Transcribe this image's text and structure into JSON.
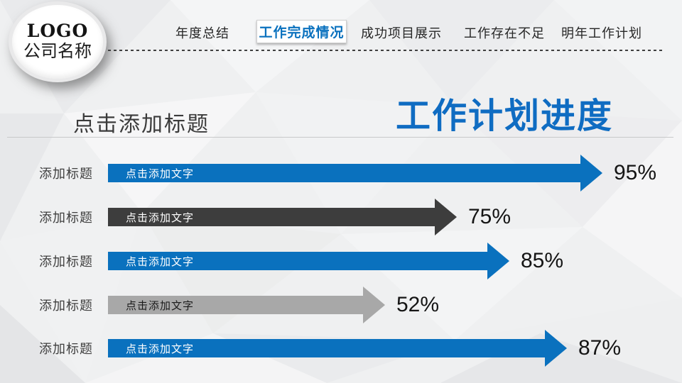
{
  "logo": {
    "line1": "LOGO",
    "line2": "公司名称"
  },
  "nav": {
    "items": [
      {
        "label": "年度总结",
        "active": false
      },
      {
        "label": "工作完成情况",
        "active": true
      },
      {
        "label": "成功项目展示",
        "active": false
      },
      {
        "label": "工作存在不足",
        "active": false
      },
      {
        "label": "明年工作计划",
        "active": false
      }
    ]
  },
  "section": {
    "left_title": "点击添加标题",
    "right_title": "工作计划进度"
  },
  "colors": {
    "accent_blue": "#0a71be",
    "title_blue": "#0f6cc2",
    "dark_gray": "#3d3d3d",
    "light_gray": "#a8a8a8"
  },
  "chart_data": {
    "type": "bar",
    "orientation": "horizontal",
    "title": "工作计划进度",
    "categories": [
      "添加标题",
      "添加标题",
      "添加标题",
      "添加标题",
      "添加标题"
    ],
    "bar_label": "点击添加文字",
    "values": [
      95,
      75,
      85,
      52,
      87
    ],
    "value_labels": [
      "95%",
      "75%",
      "85%",
      "52%",
      "87%"
    ],
    "series_colors": [
      "blue",
      "dark",
      "blue",
      "gray",
      "blue"
    ],
    "arrow_tip_x": [
      848,
      643,
      717,
      542,
      798
    ],
    "xlim": [
      0,
      100
    ],
    "grid": false,
    "legend": false
  }
}
